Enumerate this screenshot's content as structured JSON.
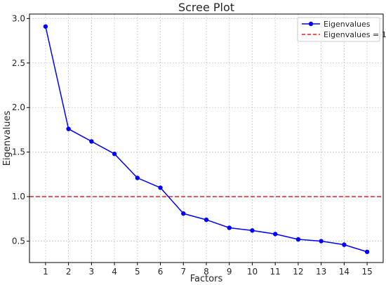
{
  "chart_data": {
    "type": "line",
    "title": "Scree Plot",
    "xlabel": "Factors",
    "ylabel": "Eigenvalues",
    "x": [
      1,
      2,
      3,
      4,
      5,
      6,
      7,
      8,
      9,
      10,
      11,
      12,
      13,
      14,
      15
    ],
    "xlim": [
      0.3,
      15.7
    ],
    "ylim": [
      0.26,
      3.05
    ],
    "xticks": [
      "1",
      "2",
      "3",
      "4",
      "5",
      "6",
      "7",
      "8",
      "9",
      "10",
      "11",
      "12",
      "13",
      "14",
      "15"
    ],
    "yticks": [
      {
        "value": 0.5,
        "label": "0.5"
      },
      {
        "value": 1.0,
        "label": "1.0"
      },
      {
        "value": 1.5,
        "label": "1.5"
      },
      {
        "value": 2.0,
        "label": "2.0"
      },
      {
        "value": 2.5,
        "label": "2.5"
      },
      {
        "value": 3.0,
        "label": "3.0"
      }
    ],
    "grid": true,
    "legend_position": "top-right",
    "series": [
      {
        "name": "Eigenvalues",
        "color": "#0000ff",
        "style": "solid",
        "marker": "circle",
        "values": [
          2.91,
          1.76,
          1.62,
          1.48,
          1.21,
          1.1,
          0.81,
          0.74,
          0.65,
          0.62,
          0.58,
          0.52,
          0.5,
          0.46,
          0.38
        ]
      }
    ],
    "reference_lines": [
      {
        "name": "Eigenvalues = 1",
        "y": 1.0,
        "color": "#d62728",
        "style": "dashed"
      }
    ]
  }
}
